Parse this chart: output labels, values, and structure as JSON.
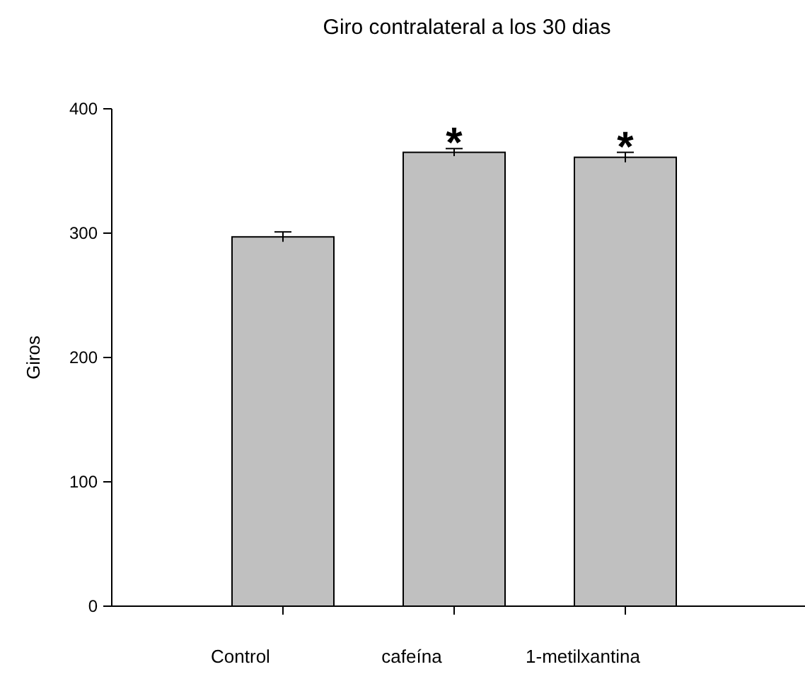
{
  "chart_data": {
    "type": "bar",
    "title": "Giro contralateral a los 30 dias",
    "ylabel": "Giros",
    "categories": [
      "Control",
      "cafeína",
      "1-metilxantina"
    ],
    "values": [
      297,
      365,
      361
    ],
    "errors": [
      4,
      3,
      4
    ],
    "color": "#c0c0c0",
    "ylim": [
      0,
      400
    ],
    "yticks": [
      0,
      100,
      200,
      300,
      400
    ],
    "annotations": [
      {
        "text": "*",
        "x": "cafeína",
        "y": 368
      },
      {
        "text": "*",
        "x": "1-metilxantina",
        "y": 365
      }
    ]
  }
}
